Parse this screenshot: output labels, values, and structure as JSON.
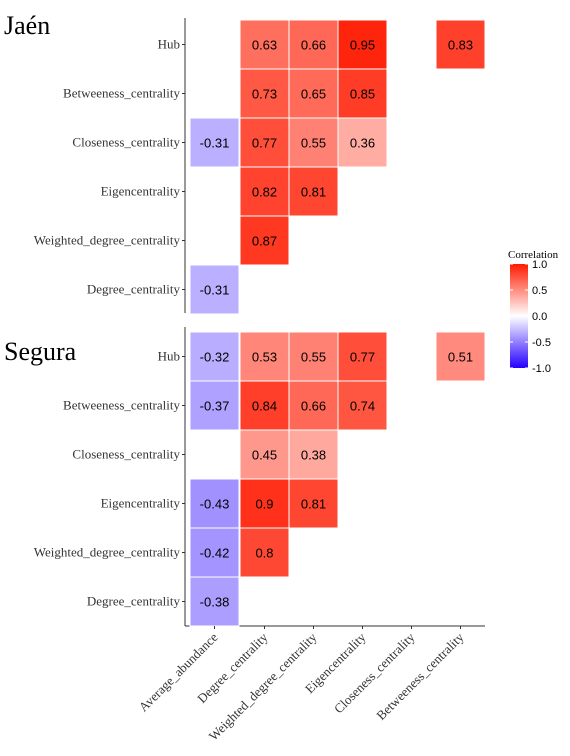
{
  "chart_data": {
    "type": "heatmap",
    "x_categories": [
      "Average_abundance",
      "Degree_centrality",
      "Weighted_degree_centrality",
      "Eigencentrality",
      "Closeness_centrality",
      "Betweeness_centrality"
    ],
    "y_categories": [
      "Hub",
      "Betweeness_centrality",
      "Closeness_centrality",
      "Eigencentrality",
      "Weighted_degree_centrality",
      "Degree_centrality"
    ],
    "legend": {
      "title": "Correlation",
      "placement": "right",
      "range": [
        -1.0,
        1.0
      ],
      "tick_values": [
        1.0,
        0.5,
        0.0,
        -0.5,
        -1.0
      ],
      "tick_labels": [
        "1.0",
        "0.5",
        "0.0",
        "-0.5",
        "-1.0"
      ],
      "low_color": "#2400ff",
      "mid_color": "#ffffff",
      "high_color": "#ff1a00"
    },
    "panels": [
      {
        "title": "Jaén",
        "cells": [
          {
            "y": "Hub",
            "x": "Degree_centrality",
            "value": 0.63,
            "label": "0.63"
          },
          {
            "y": "Hub",
            "x": "Weighted_degree_centrality",
            "value": 0.66,
            "label": "0.66"
          },
          {
            "y": "Hub",
            "x": "Eigencentrality",
            "value": 0.95,
            "label": "0.95"
          },
          {
            "y": "Hub",
            "x": "Betweeness_centrality",
            "value": 0.83,
            "label": "0.83"
          },
          {
            "y": "Betweeness_centrality",
            "x": "Degree_centrality",
            "value": 0.73,
            "label": "0.73"
          },
          {
            "y": "Betweeness_centrality",
            "x": "Weighted_degree_centrality",
            "value": 0.65,
            "label": "0.65"
          },
          {
            "y": "Betweeness_centrality",
            "x": "Eigencentrality",
            "value": 0.85,
            "label": "0.85"
          },
          {
            "y": "Closeness_centrality",
            "x": "Average_abundance",
            "value": -0.31,
            "label": "-0.31"
          },
          {
            "y": "Closeness_centrality",
            "x": "Degree_centrality",
            "value": 0.77,
            "label": "0.77"
          },
          {
            "y": "Closeness_centrality",
            "x": "Weighted_degree_centrality",
            "value": 0.55,
            "label": "0.55"
          },
          {
            "y": "Closeness_centrality",
            "x": "Eigencentrality",
            "value": 0.36,
            "label": "0.36"
          },
          {
            "y": "Eigencentrality",
            "x": "Degree_centrality",
            "value": 0.82,
            "label": "0.82"
          },
          {
            "y": "Eigencentrality",
            "x": "Weighted_degree_centrality",
            "value": 0.81,
            "label": "0.81"
          },
          {
            "y": "Weighted_degree_centrality",
            "x": "Degree_centrality",
            "value": 0.87,
            "label": "0.87"
          },
          {
            "y": "Degree_centrality",
            "x": "Average_abundance",
            "value": -0.31,
            "label": "-0.31"
          }
        ]
      },
      {
        "title": "Segura",
        "cells": [
          {
            "y": "Hub",
            "x": "Average_abundance",
            "value": -0.32,
            "label": "-0.32"
          },
          {
            "y": "Hub",
            "x": "Degree_centrality",
            "value": 0.53,
            "label": "0.53"
          },
          {
            "y": "Hub",
            "x": "Weighted_degree_centrality",
            "value": 0.55,
            "label": "0.55"
          },
          {
            "y": "Hub",
            "x": "Eigencentrality",
            "value": 0.77,
            "label": "0.77"
          },
          {
            "y": "Hub",
            "x": "Betweeness_centrality",
            "value": 0.51,
            "label": "0.51"
          },
          {
            "y": "Betweeness_centrality",
            "x": "Average_abundance",
            "value": -0.37,
            "label": "-0.37"
          },
          {
            "y": "Betweeness_centrality",
            "x": "Degree_centrality",
            "value": 0.84,
            "label": "0.84"
          },
          {
            "y": "Betweeness_centrality",
            "x": "Weighted_degree_centrality",
            "value": 0.66,
            "label": "0.66"
          },
          {
            "y": "Betweeness_centrality",
            "x": "Eigencentrality",
            "value": 0.74,
            "label": "0.74"
          },
          {
            "y": "Closeness_centrality",
            "x": "Degree_centrality",
            "value": 0.45,
            "label": "0.45"
          },
          {
            "y": "Closeness_centrality",
            "x": "Weighted_degree_centrality",
            "value": 0.38,
            "label": "0.38"
          },
          {
            "y": "Eigencentrality",
            "x": "Average_abundance",
            "value": -0.43,
            "label": "-0.43"
          },
          {
            "y": "Eigencentrality",
            "x": "Degree_centrality",
            "value": 0.9,
            "label": "0.9"
          },
          {
            "y": "Eigencentrality",
            "x": "Weighted_degree_centrality",
            "value": 0.81,
            "label": "0.81"
          },
          {
            "y": "Weighted_degree_centrality",
            "x": "Average_abundance",
            "value": -0.42,
            "label": "-0.42"
          },
          {
            "y": "Weighted_degree_centrality",
            "x": "Degree_centrality",
            "value": 0.8,
            "label": "0.8"
          },
          {
            "y": "Degree_centrality",
            "x": "Average_abundance",
            "value": -0.38,
            "label": "-0.38"
          }
        ]
      }
    ]
  }
}
